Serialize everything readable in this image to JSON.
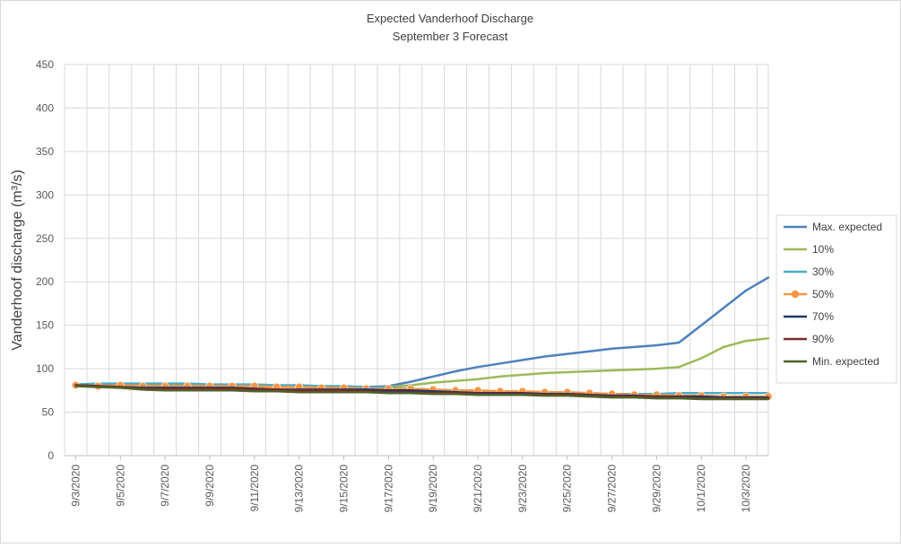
{
  "chart_data": {
    "type": "line",
    "title": "Expected Vanderhoof Discharge",
    "subtitle": "September 3 Forecast",
    "xlabel": "",
    "ylabel": "Vanderhoof discharge (m³/s)",
    "ylim": [
      0,
      450
    ],
    "yticks": [
      0,
      50,
      100,
      150,
      200,
      250,
      300,
      350,
      400,
      450
    ],
    "grid": true,
    "legend_position": "right",
    "x": [
      "9/3/2020",
      "9/4/2020",
      "9/5/2020",
      "9/6/2020",
      "9/7/2020",
      "9/8/2020",
      "9/9/2020",
      "9/10/2020",
      "9/11/2020",
      "9/12/2020",
      "9/13/2020",
      "9/14/2020",
      "9/15/2020",
      "9/16/2020",
      "9/17/2020",
      "9/18/2020",
      "9/19/2020",
      "9/20/2020",
      "9/21/2020",
      "9/22/2020",
      "9/23/2020",
      "9/24/2020",
      "9/25/2020",
      "9/26/2020",
      "9/27/2020",
      "9/28/2020",
      "9/29/2020",
      "9/30/2020",
      "10/1/2020",
      "10/2/2020",
      "10/3/2020",
      "10/4/2020"
    ],
    "xtick_labels": [
      "9/3/2020",
      "9/5/2020",
      "9/7/2020",
      "9/9/2020",
      "9/11/2020",
      "9/13/2020",
      "9/15/2020",
      "9/17/2020",
      "9/19/2020",
      "9/21/2020",
      "9/23/2020",
      "9/25/2020",
      "9/27/2020",
      "9/29/2020",
      "10/1/2020",
      "10/3/2020"
    ],
    "series": [
      {
        "name": "Max. expected",
        "color": "#4f81bd",
        "marker": false,
        "values": [
          82,
          82,
          82,
          82,
          82,
          82,
          81,
          81,
          80,
          80,
          80,
          79,
          79,
          79,
          80,
          85,
          91,
          97,
          102,
          106,
          110,
          114,
          117,
          120,
          123,
          125,
          127,
          130,
          150,
          170,
          190,
          205
        ]
      },
      {
        "name": "10%",
        "color": "#9bbb59",
        "marker": false,
        "values": [
          81,
          81,
          81,
          81,
          81,
          81,
          80,
          80,
          79,
          79,
          79,
          78,
          78,
          78,
          79,
          81,
          84,
          86,
          88,
          91,
          93,
          95,
          96,
          97,
          98,
          99,
          100,
          102,
          112,
          125,
          132,
          135
        ]
      },
      {
        "name": "30%",
        "color": "#4bacc6",
        "marker": false,
        "values": [
          82,
          83,
          83,
          83,
          83,
          83,
          82,
          82,
          82,
          81,
          81,
          80,
          80,
          79,
          78,
          77,
          76,
          75,
          74,
          74,
          73,
          73,
          72,
          72,
          71,
          71,
          71,
          72,
          72,
          72,
          72,
          72
        ]
      },
      {
        "name": "50%",
        "color": "#f79646",
        "marker": true,
        "values": [
          81,
          80,
          81,
          80,
          80,
          80,
          80,
          80,
          80,
          79,
          79,
          78,
          78,
          77,
          77,
          77,
          76,
          75,
          75,
          74,
          74,
          73,
          73,
          72,
          71,
          70,
          70,
          69,
          69,
          68,
          68,
          68
        ]
      },
      {
        "name": "70%",
        "color": "#1f3864",
        "marker": false,
        "values": [
          81,
          80,
          79,
          78,
          78,
          78,
          78,
          78,
          77,
          76,
          76,
          76,
          76,
          76,
          75,
          75,
          74,
          73,
          72,
          72,
          72,
          71,
          71,
          70,
          69,
          69,
          68,
          68,
          68,
          67,
          67,
          67
        ]
      },
      {
        "name": "90%",
        "color": "#7b2c2c",
        "marker": false,
        "values": [
          81,
          80,
          79,
          77,
          77,
          77,
          77,
          77,
          76,
          76,
          75,
          75,
          75,
          74,
          73,
          73,
          72,
          72,
          71,
          71,
          71,
          70,
          70,
          69,
          68,
          68,
          67,
          67,
          66,
          66,
          66,
          66
        ]
      },
      {
        "name": "Min. expected",
        "color": "#4f6228",
        "marker": false,
        "values": [
          80,
          79,
          78,
          76,
          75,
          75,
          75,
          75,
          74,
          74,
          73,
          73,
          73,
          73,
          72,
          72,
          71,
          71,
          70,
          70,
          70,
          69,
          69,
          68,
          67,
          67,
          66,
          66,
          65,
          65,
          65,
          65
        ]
      }
    ]
  }
}
